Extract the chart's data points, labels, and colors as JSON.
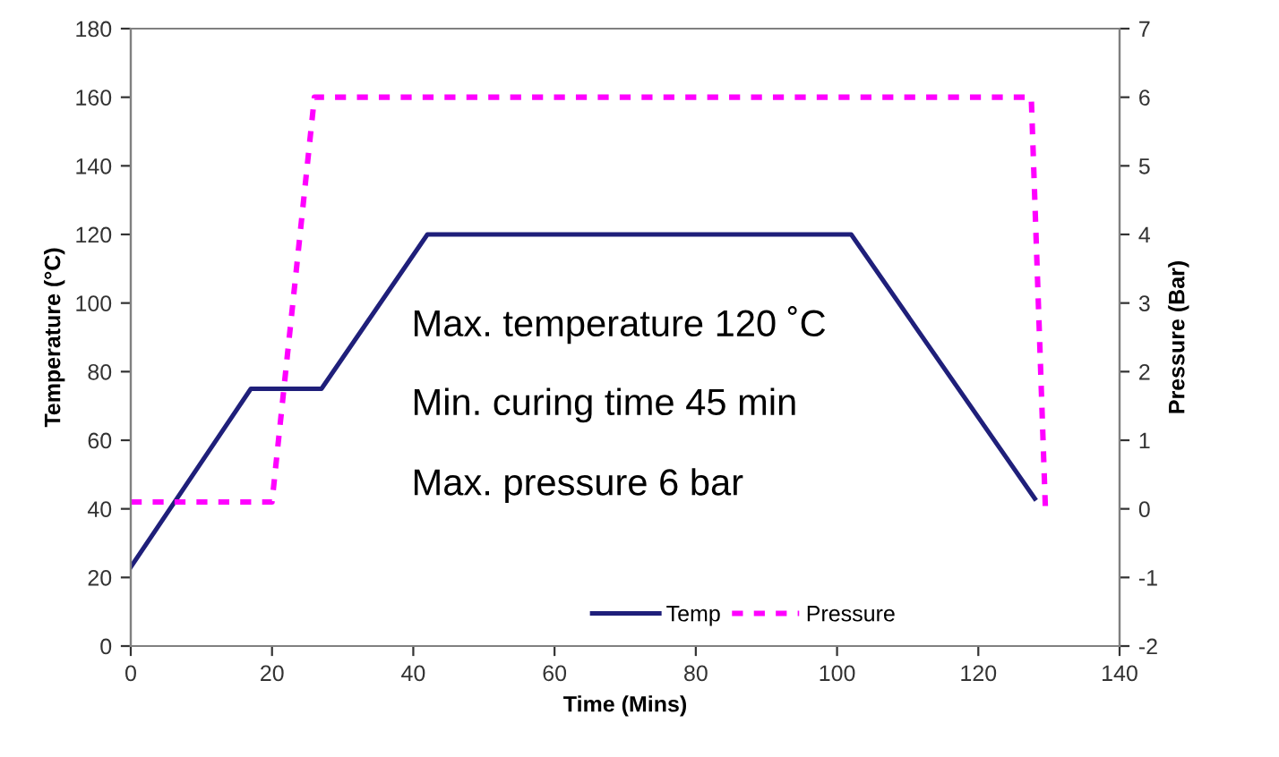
{
  "chart_data": {
    "type": "line",
    "xlabel": "Time (Mins)",
    "ylabel": "Temperature (°C)",
    "y2label": "Pressure (Bar)",
    "xlim": [
      0,
      140
    ],
    "xticks": [
      0,
      20,
      40,
      60,
      80,
      100,
      120,
      140
    ],
    "ylim": [
      0,
      180
    ],
    "yticks": [
      0,
      20,
      40,
      60,
      80,
      100,
      120,
      140,
      160,
      180
    ],
    "y2lim": [
      -2,
      7
    ],
    "y2ticks": [
      -2,
      -1,
      0,
      1,
      2,
      3,
      4,
      5,
      6,
      7
    ],
    "series": [
      {
        "name": "Temp",
        "color": "#1f1f7a",
        "line_style": "solid",
        "x": [
          0,
          17,
          27,
          42,
          102,
          128
        ],
        "values": [
          23,
          75,
          75,
          120,
          120,
          43
        ]
      },
      {
        "name": "Pressure",
        "color": "#ff00ff",
        "line_style": "dotted",
        "axis": "y2",
        "x": [
          0,
          20,
          26,
          127.5,
          129.5
        ],
        "values": [
          0.1,
          0.1,
          6,
          6,
          0
        ]
      }
    ],
    "annotations": [
      "Max. temperature 120 ˚C",
      "Min. curing time 45 min",
      "Max. pressure 6 bar"
    ],
    "legend": "bottom",
    "grid": false,
    "marker": "none"
  }
}
